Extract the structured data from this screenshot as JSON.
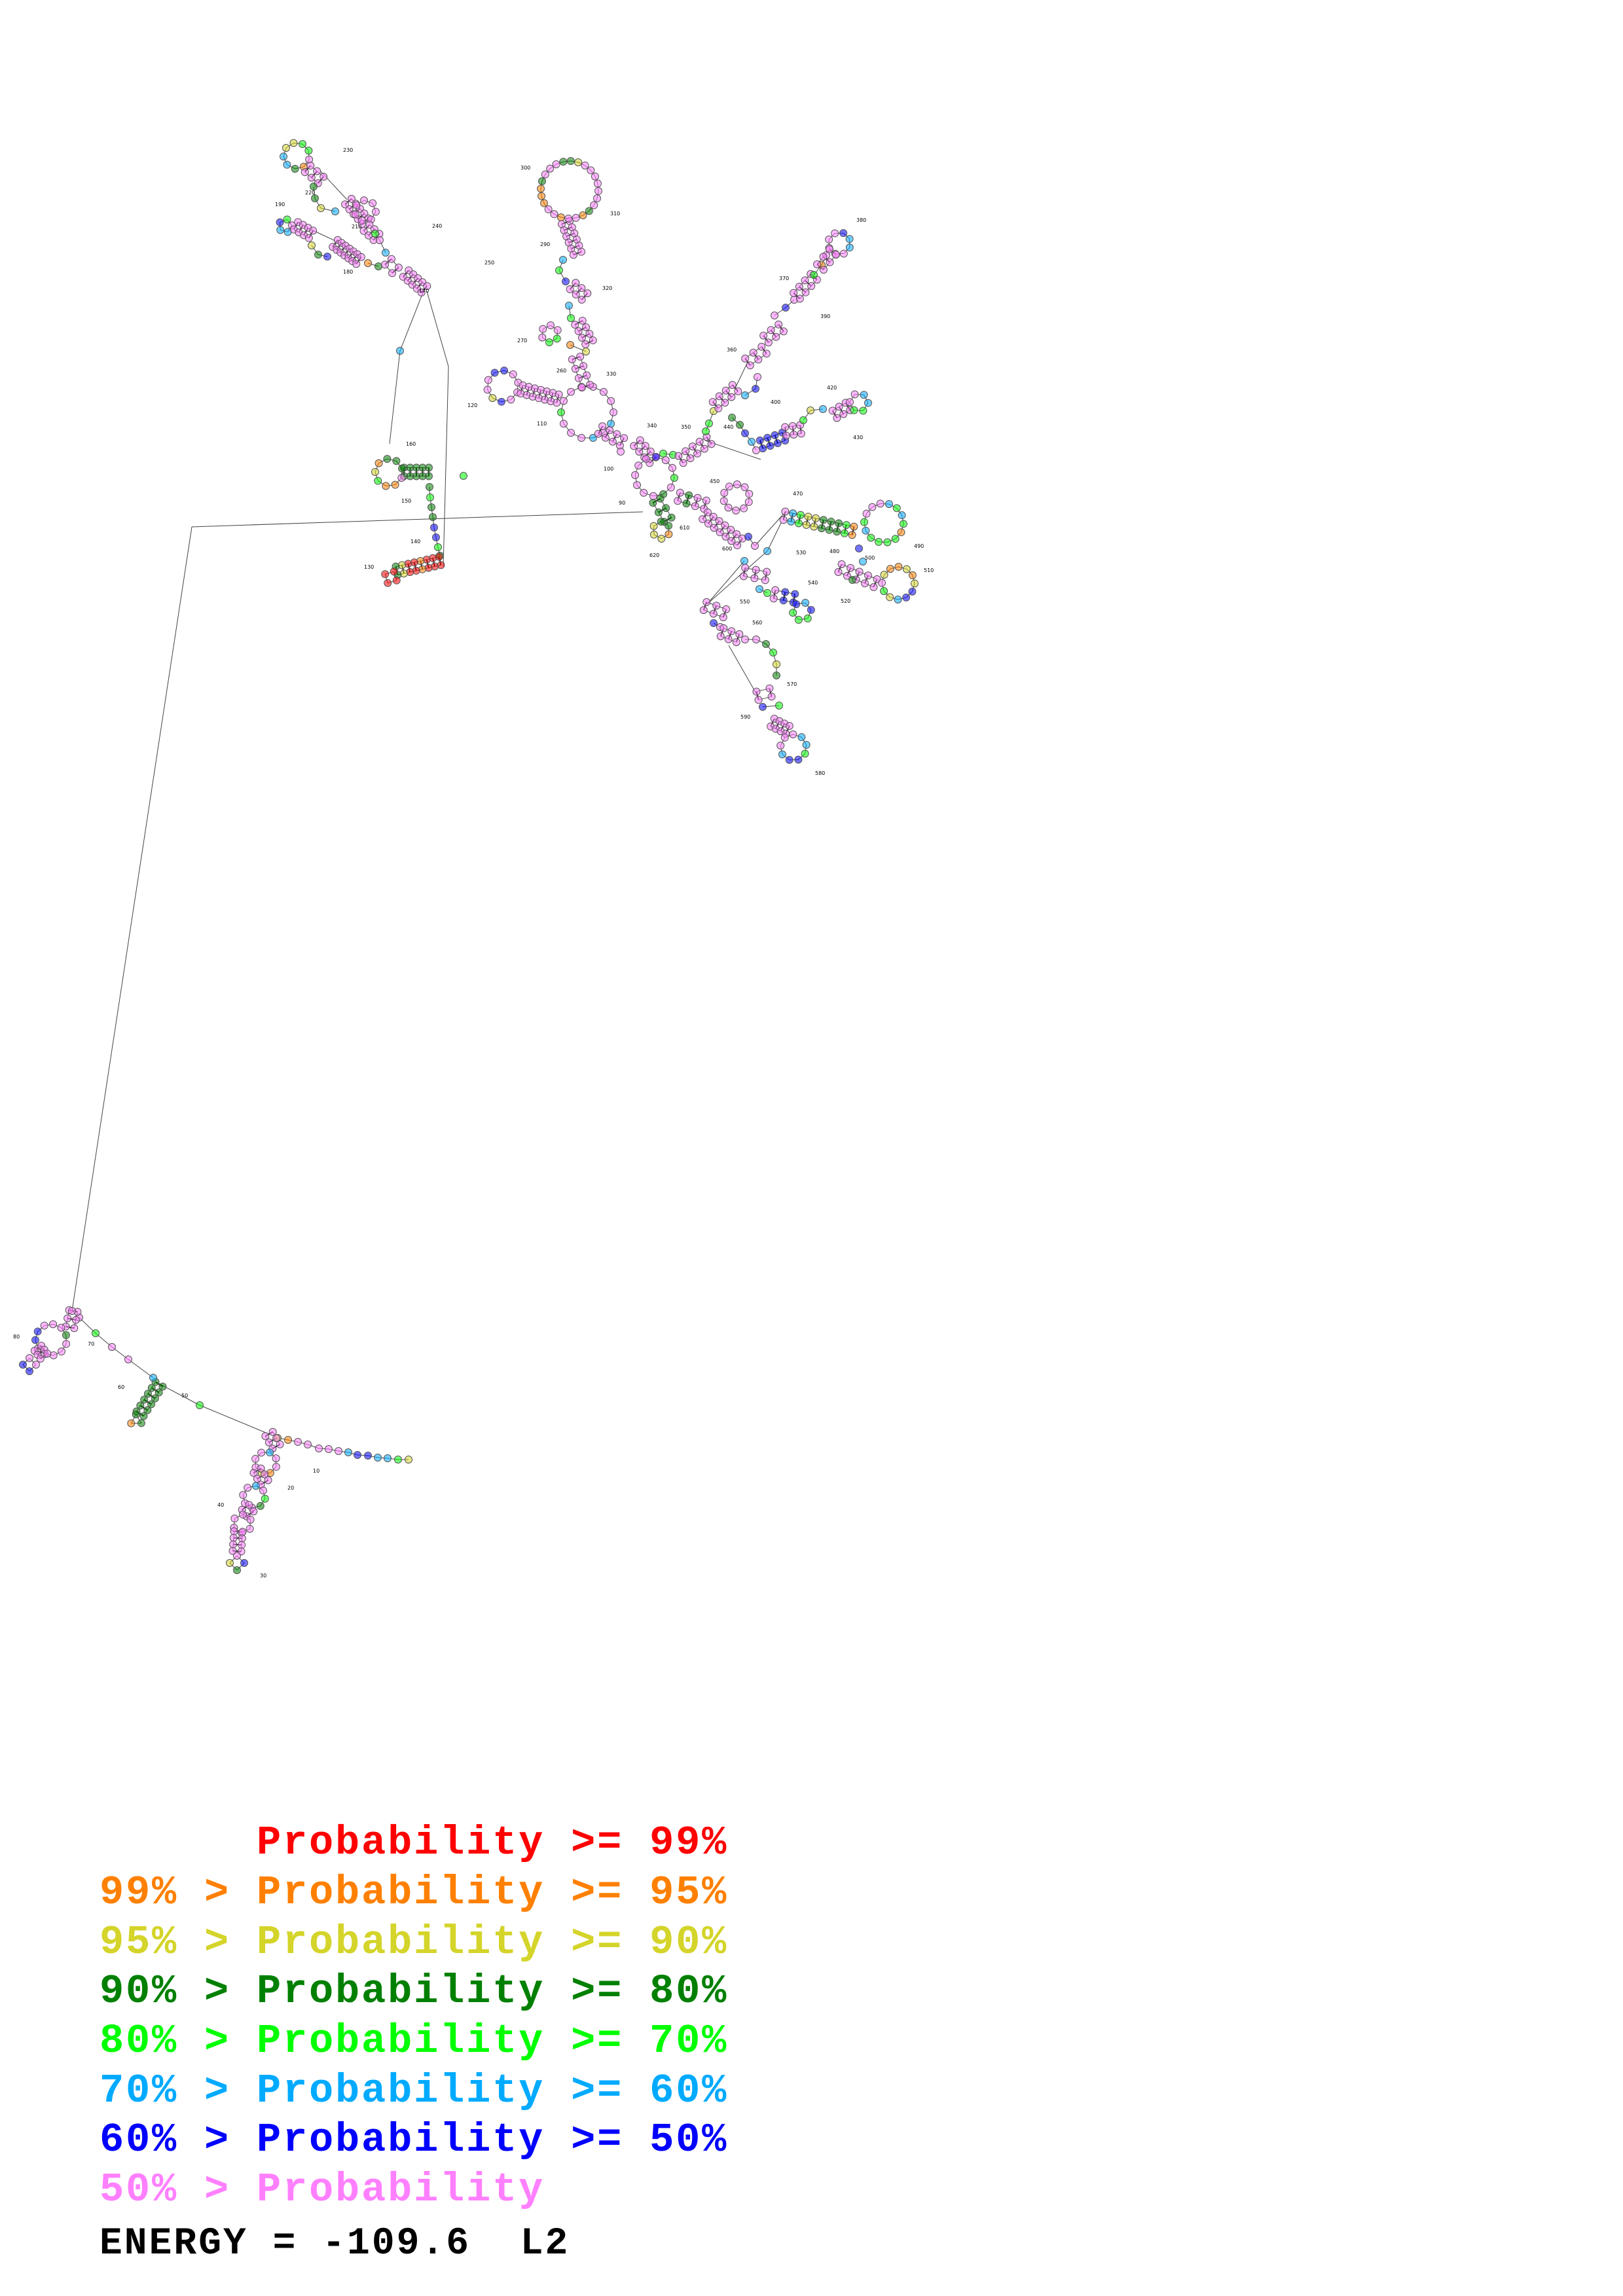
{
  "diagram": {
    "type": "RNA secondary structure",
    "position_labels": [
      "10",
      "20",
      "30",
      "40",
      "50",
      "60",
      "70",
      "80",
      "90",
      "100",
      "110",
      "120",
      "130",
      "140",
      "150",
      "160",
      "170",
      "180",
      "190",
      "210",
      "220",
      "230",
      "240",
      "250",
      "260",
      "270",
      "290",
      "300",
      "310",
      "320",
      "330",
      "340",
      "350",
      "360",
      "370",
      "380",
      "390",
      "400",
      "420",
      "430",
      "440",
      "450",
      "470",
      "480",
      "490",
      "500",
      "510",
      "520",
      "530",
      "540",
      "550",
      "560",
      "570",
      "580",
      "590",
      "600",
      "610",
      "620"
    ]
  },
  "legend": {
    "rows": [
      {
        "text": "      Probability >= 99%",
        "color": "#ff0000"
      },
      {
        "text": "99% > Probability >= 95%",
        "color": "#ff8000"
      },
      {
        "text": "95% > Probability >= 90%",
        "color": "#d4d42a"
      },
      {
        "text": "90% > Probability >= 80%",
        "color": "#008000"
      },
      {
        "text": "80% > Probability >= 70%",
        "color": "#00ff00"
      },
      {
        "text": "70% > Probability >= 60%",
        "color": "#00aaff"
      },
      {
        "text": "60% > Probability >= 50%",
        "color": "#0000ff"
      },
      {
        "text": "50% > Probability",
        "color": "#ff80ff"
      }
    ]
  },
  "energy": "ENERGY = -109.6  L2"
}
